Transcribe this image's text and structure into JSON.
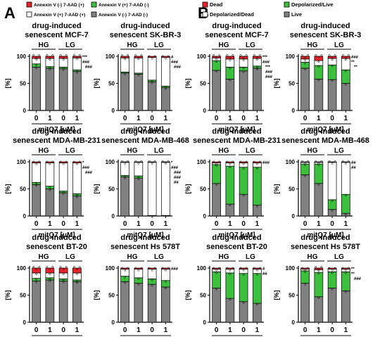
{
  "panels": [
    {
      "letter": "A",
      "legend": [
        {
          "label": "Annexin V (-) 7-AAD (+)",
          "color": "#e8232a"
        },
        {
          "label": "Annexin V (+) 7-AAD (-)",
          "color": "#3cbf3c"
        },
        {
          "label": "Annexin V (+) 7-AAD (+)",
          "color": "#ffffff"
        },
        {
          "label": "Annexin V (-) 7-AAD (-)",
          "color": "#808080"
        }
      ]
    },
    {
      "letter": "B",
      "legend": [
        {
          "label": "Dead",
          "color": "#e8232a"
        },
        {
          "label": "Depolarized/Live",
          "color": "#3cbf3c"
        },
        {
          "label": "Depolarized/Dead",
          "color": "#ffffff"
        },
        {
          "label": "Live",
          "color": "#808080"
        }
      ]
    }
  ],
  "common": {
    "ylabel": "[%]",
    "yticks": [
      "0",
      "50",
      "100"
    ],
    "xticks": [
      "0",
      "1",
      "0",
      "1"
    ],
    "groups": [
      "HG",
      "LG"
    ],
    "xlabel": "mitQ7 [μM]"
  },
  "chart_data": [
    {
      "panel": "A",
      "type": "bar",
      "stacked": true,
      "title": [
        "drug-induced",
        "senescent MCF-7"
      ],
      "categories": [
        "HG 0",
        "HG 1",
        "LG 0",
        "LG 1"
      ],
      "ylim": [
        0,
        100
      ],
      "series": [
        {
          "name": "Annexin V (-) 7-AAD (-)",
          "values": [
            80,
            78,
            77,
            72
          ]
        },
        {
          "name": "Annexin V (+) 7-AAD (-)",
          "values": [
            6,
            3,
            3,
            3
          ]
        },
        {
          "name": "Annexin V (+) 7-AAD (+)",
          "values": [
            10,
            15,
            16,
            22
          ]
        },
        {
          "name": "Annexin V (-) 7-AAD (+)",
          "values": [
            4,
            4,
            4,
            3
          ]
        }
      ],
      "annotations": [
        "***",
        "###",
        "###"
      ]
    },
    {
      "panel": "A",
      "type": "bar",
      "stacked": true,
      "title": [
        "drug-induced",
        "senescent SK-BR-3"
      ],
      "categories": [
        "HG 0",
        "HG 1",
        "LG 0",
        "LG 1"
      ],
      "ylim": [
        0,
        100
      ],
      "series": [
        {
          "name": "Annexin V (-) 7-AAD (-)",
          "values": [
            69,
            67,
            53,
            42
          ]
        },
        {
          "name": "Annexin V (+) 7-AAD (-)",
          "values": [
            2,
            2,
            3,
            3
          ]
        },
        {
          "name": "Annexin V (+) 7-AAD (+)",
          "values": [
            26,
            28,
            42,
            53
          ]
        },
        {
          "name": "Annexin V (-) 7-AAD (+)",
          "values": [
            3,
            3,
            2,
            2
          ]
        }
      ],
      "annotations": [
        "#",
        "###",
        "###"
      ]
    },
    {
      "panel": "A",
      "type": "bar",
      "stacked": true,
      "title": [
        "drug-induced",
        "senescent MDA-MB-231"
      ],
      "categories": [
        "HG 0",
        "HG 1",
        "LG 0",
        "LG 1"
      ],
      "ylim": [
        0,
        100
      ],
      "series": [
        {
          "name": "Annexin V (-) 7-AAD (-)",
          "values": [
            58,
            50,
            43,
            37
          ]
        },
        {
          "name": "Annexin V (+) 7-AAD (-)",
          "values": [
            4,
            5,
            3,
            4
          ]
        },
        {
          "name": "Annexin V (+) 7-AAD (+)",
          "values": [
            36,
            43,
            52,
            57
          ]
        },
        {
          "name": "Annexin V (-) 7-AAD (+)",
          "values": [
            2,
            2,
            2,
            2
          ]
        }
      ],
      "annotations": [
        "*",
        "###",
        "###"
      ]
    },
    {
      "panel": "A",
      "type": "bar",
      "stacked": true,
      "title": [
        "drug-induced",
        "senescent MDA-MB-468"
      ],
      "categories": [
        "HG 0",
        "HG 1",
        "LG 0",
        "LG 1"
      ],
      "ylim": [
        0,
        100
      ],
      "series": [
        {
          "name": "Annexin V (-) 7-AAD (-)",
          "values": [
            72,
            70,
            1,
            1
          ]
        },
        {
          "name": "Annexin V (+) 7-AAD (-)",
          "values": [
            3,
            4,
            0,
            0
          ]
        },
        {
          "name": "Annexin V (+) 7-AAD (+)",
          "values": [
            24,
            25,
            98,
            98
          ]
        },
        {
          "name": "Annexin V (-) 7-AAD (+)",
          "values": [
            1,
            1,
            1,
            1
          ]
        }
      ],
      "annotations": [
        "*",
        "###",
        "###",
        "###",
        "##"
      ]
    },
    {
      "panel": "A",
      "type": "bar",
      "stacked": true,
      "title": [
        "drug-induced",
        "senescent BT-20"
      ],
      "categories": [
        "HG 0",
        "HG 1",
        "LG 0",
        "LG 1"
      ],
      "ylim": [
        0,
        100
      ],
      "series": [
        {
          "name": "Annexin V (-) 7-AAD (-)",
          "values": [
            76,
            78,
            76,
            75
          ]
        },
        {
          "name": "Annexin V (+) 7-AAD (-)",
          "values": [
            5,
            4,
            4,
            3
          ]
        },
        {
          "name": "Annexin V (+) 7-AAD (+)",
          "values": [
            10,
            9,
            11,
            13
          ]
        },
        {
          "name": "Annexin V (-) 7-AAD (+)",
          "values": [
            9,
            9,
            9,
            9
          ]
        }
      ],
      "annotations": []
    },
    {
      "panel": "A",
      "type": "bar",
      "stacked": true,
      "title": [
        "drug-induced",
        "senescent Hs 578T"
      ],
      "categories": [
        "HG 0",
        "HG 1",
        "LG 0",
        "LG 1"
      ],
      "ylim": [
        0,
        100
      ],
      "series": [
        {
          "name": "Annexin V (-) 7-AAD (-)",
          "values": [
            75,
            72,
            70,
            65
          ]
        },
        {
          "name": "Annexin V (+) 7-AAD (-)",
          "values": [
            10,
            10,
            10,
            12
          ]
        },
        {
          "name": "Annexin V (+) 7-AAD (+)",
          "values": [
            13,
            16,
            18,
            21
          ]
        },
        {
          "name": "Annexin V (-) 7-AAD (+)",
          "values": [
            2,
            2,
            2,
            2
          ]
        }
      ],
      "annotations": [
        "###"
      ]
    },
    {
      "panel": "B",
      "type": "bar",
      "stacked": true,
      "title": [
        "drug-induced",
        "senescent MCF-7"
      ],
      "categories": [
        "HG 0",
        "HG 1",
        "LG 0",
        "LG 1"
      ],
      "ylim": [
        0,
        100
      ],
      "series": [
        {
          "name": "Live",
          "values": [
            74,
            58,
            73,
            78
          ]
        },
        {
          "name": "Depolarized/Live",
          "values": [
            18,
            22,
            7,
            4
          ]
        },
        {
          "name": "Depolarized/Dead",
          "values": [
            5,
            15,
            15,
            14
          ]
        },
        {
          "name": "Dead",
          "values": [
            3,
            5,
            5,
            4
          ]
        }
      ],
      "annotations": [
        "***",
        "###",
        "***",
        "###",
        "###"
      ]
    },
    {
      "panel": "B",
      "type": "bar",
      "stacked": true,
      "title": [
        "drug-induced",
        "senescent SK-BR-3"
      ],
      "categories": [
        "HG 0",
        "HG 1",
        "LG 0",
        "LG 1"
      ],
      "ylim": [
        0,
        100
      ],
      "series": [
        {
          "name": "Live",
          "values": [
            78,
            58,
            57,
            50
          ]
        },
        {
          "name": "Depolarized/Live",
          "values": [
            11,
            25,
            27,
            25
          ]
        },
        {
          "name": "Depolarized/Dead",
          "values": [
            6,
            9,
            12,
            21
          ]
        },
        {
          "name": "Dead",
          "values": [
            5,
            8,
            4,
            4
          ]
        }
      ],
      "annotations": [
        "###",
        "**",
        "**"
      ]
    },
    {
      "panel": "B",
      "type": "bar",
      "stacked": true,
      "title": [
        "drug-induced",
        "senescent MDA-MB-231"
      ],
      "categories": [
        "HG 0",
        "HG 1",
        "LG 0",
        "LG 1"
      ],
      "ylim": [
        0,
        100
      ],
      "series": [
        {
          "name": "Live",
          "values": [
            60,
            22,
            40,
            20
          ]
        },
        {
          "name": "Depolarized/Live",
          "values": [
            35,
            70,
            50,
            70
          ]
        },
        {
          "name": "Depolarized/Dead",
          "values": [
            3,
            6,
            8,
            8
          ]
        },
        {
          "name": "Dead",
          "values": [
            2,
            2,
            2,
            2
          ]
        }
      ],
      "annotations": [
        "###"
      ]
    },
    {
      "panel": "B",
      "type": "bar",
      "stacked": true,
      "title": [
        "drug-induced",
        "senescent MDA-MB-468"
      ],
      "categories": [
        "HG 0",
        "HG 1",
        "LG 0",
        "LG 1"
      ],
      "ylim": [
        0,
        100
      ],
      "series": [
        {
          "name": "Live",
          "values": [
            76,
            60,
            12,
            5
          ]
        },
        {
          "name": "Depolarized/Live",
          "values": [
            20,
            36,
            18,
            35
          ]
        },
        {
          "name": "Depolarized/Dead",
          "values": [
            3,
            3,
            69,
            59
          ]
        },
        {
          "name": "Dead",
          "values": [
            1,
            1,
            1,
            1
          ]
        }
      ],
      "annotations": [
        "##",
        "##"
      ]
    },
    {
      "panel": "B",
      "type": "bar",
      "stacked": true,
      "title": [
        "drug-induced",
        "senescent BT-20"
      ],
      "categories": [
        "HG 0",
        "HG 1",
        "LG 0",
        "LG 1"
      ],
      "ylim": [
        0,
        100
      ],
      "series": [
        {
          "name": "Live",
          "values": [
            63,
            44,
            38,
            35
          ]
        },
        {
          "name": "Depolarized/Live",
          "values": [
            30,
            47,
            52,
            55
          ]
        },
        {
          "name": "Depolarized/Dead",
          "values": [
            5,
            7,
            8,
            8
          ]
        },
        {
          "name": "Dead",
          "values": [
            2,
            2,
            2,
            2
          ]
        }
      ],
      "annotations": [
        "#",
        "##"
      ]
    },
    {
      "panel": "B",
      "type": "bar",
      "stacked": true,
      "title": [
        "drug-induced",
        "senescent Hs 578T"
      ],
      "categories": [
        "HG 0",
        "HG 1",
        "LG 0",
        "LG 1"
      ],
      "ylim": [
        0,
        100
      ],
      "series": [
        {
          "name": "Live",
          "values": [
            72,
            47,
            63,
            58
          ]
        },
        {
          "name": "Depolarized/Live",
          "values": [
            23,
            45,
            30,
            35
          ]
        },
        {
          "name": "Depolarized/Dead",
          "values": [
            3,
            5,
            5,
            5
          ]
        },
        {
          "name": "Dead",
          "values": [
            2,
            3,
            2,
            2
          ]
        }
      ],
      "annotations": [
        "**",
        "**",
        "###"
      ]
    }
  ]
}
